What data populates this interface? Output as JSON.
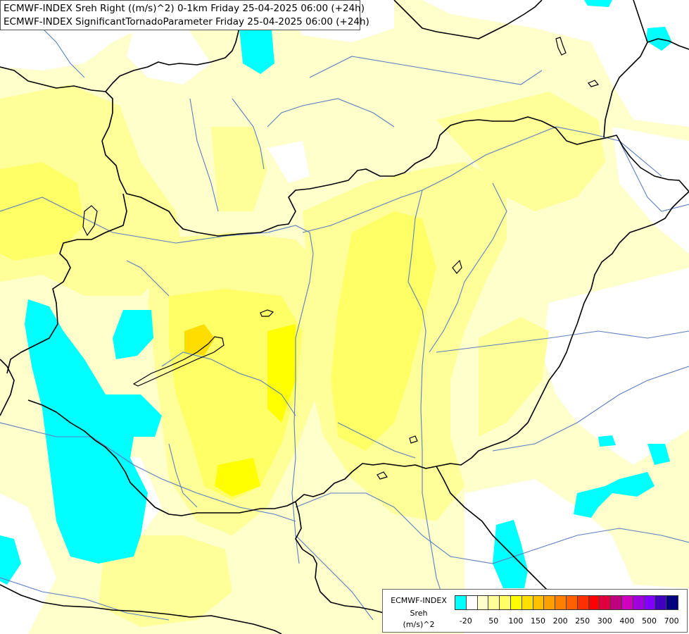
{
  "header": {
    "line1": "ECMWF-INDEX Sreh Right ((m/s)^2) 0-1km Friday 25-04-2025 06:00 (+24h)",
    "line2": "ECMWF-INDEX SignificantTornadoParameter Friday 25-04-2025 06:00 (+24h)"
  },
  "legend": {
    "model": "ECMWF-INDEX",
    "variable": "Sreh",
    "unit": "(m/s)^2",
    "tick_labels": [
      "-20",
      "50",
      "100",
      "150",
      "200",
      "250",
      "300",
      "400",
      "500",
      "700"
    ],
    "colors": [
      "#00ffff",
      "#ffffff",
      "#ffffcc",
      "#ffff99",
      "#ffff66",
      "#ffff00",
      "#ffe000",
      "#ffc000",
      "#ffa000",
      "#ff8000",
      "#ff6000",
      "#ff3000",
      "#ff0000",
      "#e00040",
      "#c00080",
      "#d000c0",
      "#a000e0",
      "#8000ff",
      "#4000c0",
      "#000080"
    ]
  },
  "map": {
    "shading_colors": {
      "background": "#ffffcc",
      "white": "#ffffff",
      "light_yellow": "#ffff99",
      "yellow": "#ffff66",
      "bright_yellow": "#ffff00",
      "orange": "#ffdd00",
      "cyan": "#00ffff"
    },
    "border_color": "#000000",
    "river_color": "#5a7fbf"
  }
}
